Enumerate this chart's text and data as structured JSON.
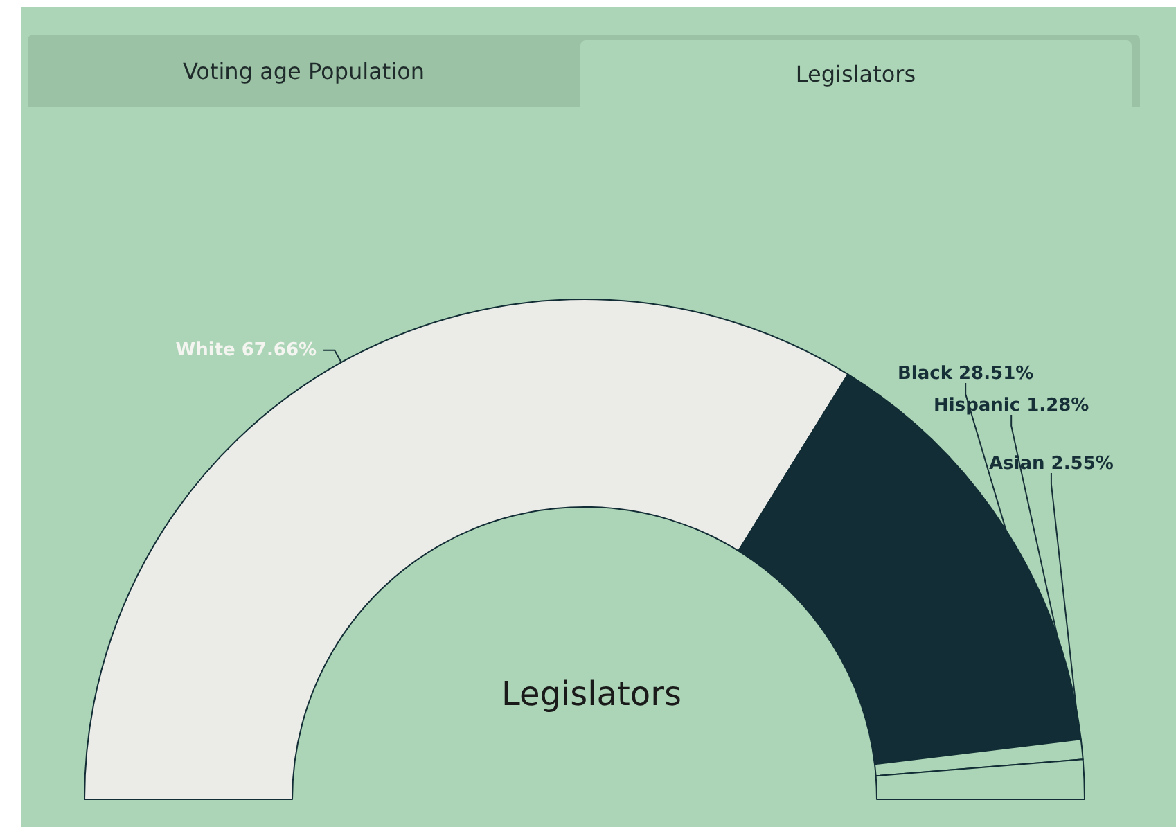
{
  "chart_data": {
    "type": "donut",
    "title": "Legislators",
    "annotations": [
      "Voting age Population",
      "Legislators"
    ],
    "categories": [
      "White",
      "Black",
      "Hispanic",
      "Asian"
    ],
    "values": [
      67.66,
      28.51,
      1.28,
      2.55
    ],
    "value_labels": [
      "67.66%",
      "28.51%",
      "1.28%",
      "2.55%"
    ],
    "colors": [
      "#ebebe7",
      "#122d35",
      "#acd5b7",
      "#acd5b7"
    ],
    "legend": false
  }
}
